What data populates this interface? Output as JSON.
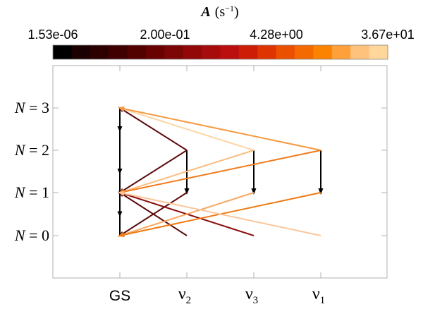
{
  "colorbar": {
    "symbol": "A",
    "unit": "(s",
    "unit_exp": "−1",
    "unit_close": ")",
    "ticks": [
      "1.53e-06",
      "2.00e-01",
      "4.28e+00",
      "3.67e+01"
    ],
    "colors": [
      "#000000",
      "#1a0000",
      "#2d0000",
      "#400000",
      "#530000",
      "#680202",
      "#7c0505",
      "#920808",
      "#a70c0c",
      "#bb0f0f",
      "#ce1d07",
      "#de3400",
      "#ea5000",
      "#f46a00",
      "#fb8300",
      "#ffa03a",
      "#ffc27c",
      "#ffd79b"
    ]
  },
  "levels": [
    {
      "prefix": "N",
      "eq": " = 0"
    },
    {
      "prefix": "N",
      "eq": " = 1"
    },
    {
      "prefix": "N",
      "eq": " = 2"
    },
    {
      "prefix": "N",
      "eq": " = 3"
    }
  ],
  "states": [
    {
      "label": "GS",
      "symbol": "",
      "sub": ""
    },
    {
      "label": "",
      "symbol": "ν",
      "sub": "2"
    },
    {
      "label": "",
      "symbol": "ν",
      "sub": "3"
    },
    {
      "label": "",
      "symbol": "ν",
      "sub": "1"
    }
  ],
  "transitions": [
    {
      "from": [
        0,
        3
      ],
      "to": [
        0,
        2
      ],
      "color": "#000000",
      "arrow": "mid"
    },
    {
      "from": [
        0,
        2
      ],
      "to": [
        0,
        1
      ],
      "color": "#000000",
      "arrow": "mid"
    },
    {
      "from": [
        0,
        1
      ],
      "to": [
        0,
        0
      ],
      "color": "#000000",
      "arrow": "mid"
    },
    {
      "from": [
        1,
        2
      ],
      "to": [
        1,
        1
      ],
      "color": "#000000",
      "arrow": "end"
    },
    {
      "from": [
        2,
        2
      ],
      "to": [
        2,
        1
      ],
      "color": "#000000",
      "arrow": "end"
    },
    {
      "from": [
        3,
        2
      ],
      "to": [
        3,
        1
      ],
      "color": "#000000",
      "arrow": "end"
    },
    {
      "from": [
        1,
        2
      ],
      "to": [
        0,
        3
      ],
      "color": "#5c0b0b",
      "arrow": "end"
    },
    {
      "from": [
        1,
        2
      ],
      "to": [
        0,
        1
      ],
      "color": "#5c0b0b",
      "arrow": "end"
    },
    {
      "from": [
        1,
        1
      ],
      "to": [
        0,
        0
      ],
      "color": "#5c0b0b",
      "arrow": "end"
    },
    {
      "from": [
        1,
        0
      ],
      "to": [
        0,
        1
      ],
      "color": "#5c0b0b",
      "arrow": "end"
    },
    {
      "from": [
        2,
        0
      ],
      "to": [
        0,
        1
      ],
      "color": "#8b1010",
      "arrow": "end"
    },
    {
      "from": [
        2,
        2
      ],
      "to": [
        0,
        3
      ],
      "color": "#fbd7a6",
      "arrow": "end"
    },
    {
      "from": [
        2,
        2
      ],
      "to": [
        0,
        1
      ],
      "color": "#f9be82",
      "arrow": "end"
    },
    {
      "from": [
        2,
        1
      ],
      "to": [
        0,
        0
      ],
      "color": "#f7a962",
      "arrow": "end"
    },
    {
      "from": [
        3,
        2
      ],
      "to": [
        0,
        3
      ],
      "color": "#f59a42",
      "arrow": "end"
    },
    {
      "from": [
        3,
        2
      ],
      "to": [
        0,
        1
      ],
      "color": "#f07d1e",
      "arrow": "end"
    },
    {
      "from": [
        3,
        1
      ],
      "to": [
        0,
        0
      ],
      "color": "#ee7a12",
      "arrow": "end"
    },
    {
      "from": [
        3,
        0
      ],
      "to": [
        0,
        1
      ],
      "color": "#fbc69a",
      "arrow": "end"
    }
  ]
}
